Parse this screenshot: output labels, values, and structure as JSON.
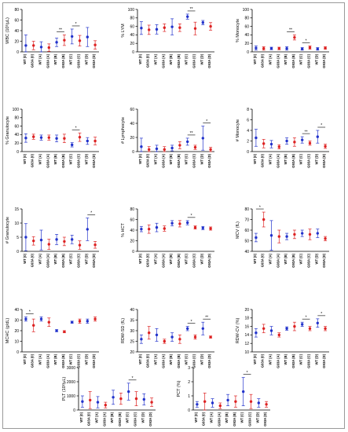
{
  "colors": {
    "wt": "#2233cc",
    "g": "#dd2222",
    "axis": "#000000"
  },
  "chart_data": [
    {
      "type": "scatter",
      "ylabel": "WBC (10³/µL)",
      "ylim": [
        0,
        80
      ],
      "yticks": [
        0,
        20,
        40,
        60,
        80
      ],
      "categories": [
        "WT (0)",
        "G93A (0)",
        "WT (A)",
        "G93A (A)",
        "WT (B)",
        "G93A (B)",
        "WT (C)",
        "G93A (C)",
        "WT (D)",
        "G93A (D)"
      ],
      "means": [
        12,
        12,
        9,
        8,
        18,
        22,
        29,
        21,
        28,
        13
      ],
      "sd": [
        20,
        8,
        10,
        7,
        8,
        10,
        14,
        10,
        18,
        8
      ],
      "signif": [
        {
          "from": 4,
          "to": 5,
          "label": "**"
        },
        {
          "from": 6,
          "to": 7,
          "label": "*"
        }
      ]
    },
    {
      "type": "scatter",
      "ylabel": "% LYM",
      "ylim": [
        0,
        100
      ],
      "yticks": [
        0,
        20,
        40,
        60,
        80,
        100
      ],
      "categories": [
        "WT (0)",
        "G93A (0)",
        "WT (A)",
        "G93A (A)",
        "WT (B)",
        "G93A (B)",
        "WT (C)",
        "G93A (C)",
        "WT (D)",
        "G93A (D)"
      ],
      "means": [
        56,
        52,
        53,
        57,
        59,
        57,
        83,
        55,
        69,
        60
      ],
      "sd": [
        15,
        11,
        11,
        9,
        19,
        9,
        6,
        15,
        5,
        9
      ],
      "signif": [
        {
          "from": 6,
          "to": 7,
          "label": "**"
        }
      ]
    },
    {
      "type": "scatter",
      "ylabel": "% Monocyte",
      "ylim": [
        0,
        100
      ],
      "yticks": [
        0,
        20,
        40,
        60,
        80,
        100
      ],
      "categories": [
        "WT (0)",
        "G93A (0)",
        "WT (A)",
        "G93A (A)",
        "WT (B)",
        "G93A (B)",
        "WT (C)",
        "G93A (C)",
        "WT (D)",
        "G93A (D)"
      ],
      "means": [
        9,
        8,
        8,
        8,
        8,
        34,
        7,
        10,
        7,
        9
      ],
      "sd": [
        5,
        4,
        3,
        3,
        4,
        6,
        3,
        4,
        3,
        3
      ],
      "signif": [
        {
          "from": 4,
          "to": 5,
          "label": "**"
        },
        {
          "from": 6,
          "to": 7,
          "label": "*"
        }
      ]
    },
    {
      "type": "scatter",
      "ylabel": "% Granulocyte",
      "ylim": [
        0,
        100
      ],
      "yticks": [
        0,
        20,
        40,
        60,
        80,
        100
      ],
      "categories": [
        "WT (0)",
        "G93A (0)",
        "WT (A)",
        "G93A (A)",
        "WT (B)",
        "G93A (B)",
        "WT (C)",
        "G93A (C)",
        "WT (D)",
        "G93A (D)"
      ],
      "means": [
        32,
        35,
        33,
        33,
        31,
        31,
        16,
        34,
        25,
        25
      ],
      "sd": [
        10,
        6,
        6,
        6,
        8,
        10,
        5,
        10,
        8,
        9
      ],
      "signif": [
        {
          "from": 6,
          "to": 7,
          "label": "*"
        }
      ]
    },
    {
      "type": "scatter",
      "ylabel": "# Lymphocyte",
      "ylim": [
        0,
        60
      ],
      "yticks": [
        0,
        20,
        40,
        60
      ],
      "categories": [
        "WT (0)",
        "G93A (0)",
        "WT (A)",
        "G93A (A)",
        "WT (B)",
        "G93A (B)",
        "WT (C)",
        "G93A (C)",
        "WT (D)",
        "G93A (D)"
      ],
      "means": [
        7,
        3,
        4,
        3,
        5,
        9,
        14,
        6,
        19,
        3
      ],
      "sd": [
        12,
        4,
        5,
        4,
        4,
        5,
        5,
        3,
        17,
        3
      ],
      "signif": [
        {
          "from": 6,
          "to": 7,
          "label": "**"
        },
        {
          "from": 8,
          "to": 9,
          "label": "*"
        }
      ]
    },
    {
      "type": "scatter",
      "ylabel": "# Monocyte",
      "ylim": [
        0,
        8
      ],
      "yticks": [
        0,
        2,
        4,
        6,
        8
      ],
      "categories": [
        "WT (0)",
        "G93A (0)",
        "WT (A)",
        "G93A (A)",
        "WT (B)",
        "G93A (B)",
        "WT (C)",
        "G93A (C)",
        "WT (D)",
        "G93A (D)"
      ],
      "means": [
        2.6,
        1.5,
        1.4,
        0.9,
        2.0,
        1.8,
        2.2,
        1.6,
        2.8,
        1.0
      ],
      "sd": [
        1.6,
        0.8,
        0.7,
        0.4,
        0.6,
        0.8,
        0.6,
        0.4,
        1.2,
        0.4
      ],
      "signif": [
        {
          "from": 6,
          "to": 7,
          "label": "**"
        },
        {
          "from": 8,
          "to": 9,
          "label": "*"
        }
      ]
    },
    {
      "type": "scatter",
      "ylabel": "# Granulocyte",
      "ylim": [
        0,
        15
      ],
      "yticks": [
        0,
        5,
        10,
        15
      ],
      "categories": [
        "WT (0)",
        "G93A (0)",
        "WT (A)",
        "G93A (A)",
        "WT (B)",
        "G93A (B)",
        "WT (C)",
        "G93A (C)",
        "WT (D)",
        "G93A (D)"
      ],
      "means": [
        5.0,
        3.7,
        4.0,
        2.5,
        4.2,
        3.5,
        4.2,
        2.2,
        7.8,
        2.3
      ],
      "sd": [
        4.8,
        1.5,
        3.5,
        1.8,
        1.8,
        1.5,
        1.5,
        1.5,
        4.0,
        1.2
      ],
      "signif": [
        {
          "from": 8,
          "to": 9,
          "label": "*"
        }
      ]
    },
    {
      "type": "scatter",
      "ylabel": "% HCT",
      "ylim": [
        0,
        80
      ],
      "yticks": [
        0,
        20,
        40,
        60,
        80
      ],
      "categories": [
        "WT (0)",
        "G93A (0)",
        "WT (A)",
        "G93A (A)",
        "WT (B)",
        "G93A (B)",
        "WT (C)",
        "G93A (C)",
        "WT (D)",
        "G93A (D)"
      ],
      "means": [
        42,
        42,
        45,
        43,
        53,
        52,
        54,
        45,
        44,
        43
      ],
      "sd": [
        5,
        8,
        8,
        5,
        5,
        6,
        4,
        3,
        3,
        3
      ],
      "signif": [
        {
          "from": 6,
          "to": 7,
          "label": "*"
        }
      ]
    },
    {
      "type": "scatter",
      "ylabel": "MCV (fL)",
      "ylim": [
        40,
        80
      ],
      "yticks": [
        40,
        50,
        60,
        70,
        80
      ],
      "categories": [
        "WT (0)",
        "G93A (0)",
        "WT (A)",
        "G93A (A)",
        "WT (B)",
        "G93A (B)",
        "WT (C)",
        "G93A (C)",
        "WT (D)",
        "G93A (D)"
      ],
      "means": [
        53,
        70,
        55,
        54,
        54,
        56,
        57,
        56,
        57,
        52
      ],
      "sd": [
        4,
        7,
        14,
        6,
        3,
        4,
        3,
        5,
        4,
        2
      ],
      "signif": [
        {
          "from": 0,
          "to": 1,
          "label": "*"
        }
      ]
    },
    {
      "type": "scatter",
      "ylabel": "MCHC (g/dL)",
      "ylim": [
        0,
        40
      ],
      "yticks": [
        0,
        10,
        20,
        30,
        40
      ],
      "categories": [
        "WT (0)",
        "G93A (0)",
        "WT (A)",
        "G93A (A)",
        "WT (B)",
        "G93A (B)",
        "WT (C)",
        "G93A (C)",
        "WT (D)",
        "G93A (D)"
      ],
      "means": [
        31,
        25,
        31,
        28,
        20,
        19,
        28,
        29,
        29,
        31
      ],
      "sd": [
        2,
        6,
        2,
        4,
        1,
        1,
        1,
        2,
        2,
        2
      ],
      "signif": [
        {
          "from": 0,
          "to": 1,
          "label": "*"
        }
      ]
    },
    {
      "type": "scatter",
      "ylabel": "RDW-SD (fL)",
      "ylim": [
        20,
        40
      ],
      "yticks": [
        20,
        25,
        30,
        35,
        40
      ],
      "categories": [
        "WT (0)",
        "G93A (0)",
        "WT (A)",
        "G93A (A)",
        "WT (B)",
        "G93A (B)",
        "WT (C)",
        "G93A (C)",
        "WT (D)",
        "G93A (D)"
      ],
      "means": [
        26,
        29,
        28,
        25,
        27,
        26,
        31,
        27,
        31,
        27
      ],
      "sd": [
        2,
        3,
        3,
        1,
        2,
        2,
        1,
        1,
        3,
        0.5
      ],
      "signif": [
        {
          "from": 6,
          "to": 7,
          "label": "*"
        },
        {
          "from": 8,
          "to": 9,
          "label": "**"
        }
      ]
    },
    {
      "type": "scatter",
      "ylabel": "RDW-CV (%)",
      "ylim": [
        10,
        20
      ],
      "yticks": [
        10,
        12,
        14,
        16,
        18,
        20
      ],
      "categories": [
        "WT (0)",
        "G93A (0)",
        "WT (A)",
        "G93A (A)",
        "WT (B)",
        "G93A (B)",
        "WT (C)",
        "G93A (C)",
        "WT (D)",
        "G93A (D)"
      ],
      "means": [
        14.5,
        15.5,
        15.0,
        14.0,
        15.5,
        16.0,
        16.5,
        15.5,
        16.8,
        15.5
      ],
      "sd": [
        1.0,
        1.0,
        1.0,
        0.5,
        0.4,
        1.0,
        0.5,
        0.5,
        1.0,
        0.5
      ],
      "signif": [
        {
          "from": 6,
          "to": 7,
          "label": "*"
        },
        {
          "from": 8,
          "to": 9,
          "label": "*"
        }
      ]
    },
    {
      "type": "scatter",
      "ylabel": "PLT (10³/µL)",
      "ylim": [
        0,
        3000
      ],
      "yticks": [
        0,
        1000,
        2000,
        3000
      ],
      "categories": [
        "WT (0)",
        "G93A (0)",
        "WT (A)",
        "G93A (A)",
        "WT (B)",
        "G93A (B)",
        "WT (C)",
        "G93A (C)",
        "WT (D)",
        "G93A (D)"
      ],
      "means": [
        600,
        700,
        550,
        350,
        900,
        800,
        1300,
        800,
        750,
        550
      ],
      "sd": [
        400,
        600,
        400,
        200,
        500,
        400,
        600,
        500,
        400,
        300
      ],
      "signif": [
        {
          "from": 6,
          "to": 7,
          "label": "*"
        }
      ]
    },
    {
      "type": "scatter",
      "ylabel": "PCT (%)",
      "ylim": [
        0,
        3
      ],
      "yticks": [
        0,
        1,
        2,
        3
      ],
      "categories": [
        "WT (0)",
        "G93A (0)",
        "WT (A)",
        "G93A (A)",
        "WT (B)",
        "G93A (B)",
        "WT (C)",
        "G93A (C)",
        "WT (D)",
        "G93A (D)"
      ],
      "means": [
        0.4,
        0.6,
        0.5,
        0.3,
        0.7,
        0.6,
        1.3,
        0.6,
        0.5,
        0.4
      ],
      "sd": [
        0.2,
        0.6,
        0.3,
        0.2,
        0.4,
        0.4,
        1.0,
        0.5,
        0.3,
        0.2
      ],
      "signif": [
        {
          "from": 6,
          "to": 7,
          "label": "*"
        }
      ]
    }
  ]
}
